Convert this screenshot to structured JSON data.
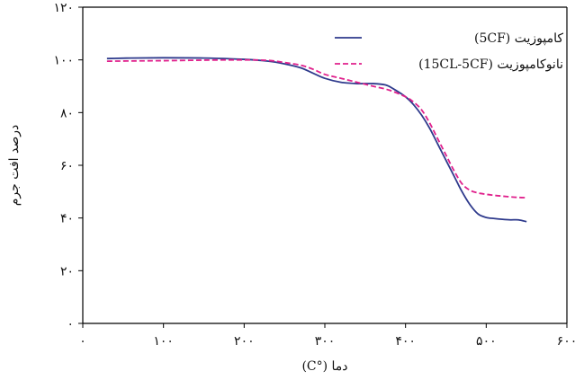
{
  "chart_data": {
    "type": "line",
    "xlabel": "دما (°C)",
    "ylabel": "درصد افت جرم",
    "xlim": [
      0,
      600
    ],
    "ylim": [
      0,
      120
    ],
    "x_ticks": [
      0,
      100,
      200,
      300,
      400,
      500,
      600
    ],
    "x_tick_labels": [
      "۰",
      "۱۰۰",
      "۲۰۰",
      "۳۰۰",
      "۴۰۰",
      "۵۰۰",
      "۶۰۰"
    ],
    "y_ticks": [
      0,
      20,
      40,
      60,
      80,
      100,
      120
    ],
    "y_tick_labels": [
      "۰",
      "۲۰",
      "۴۰",
      "۶۰",
      "۸۰",
      "۱۰۰",
      "۱۲۰"
    ],
    "grid": false,
    "legend_position": "top-right",
    "series": [
      {
        "name": "کامپوزیت (5CF)",
        "color": "#2e3a8c",
        "style": "solid",
        "x": [
          30,
          60,
          100,
          150,
          200,
          230,
          250,
          270,
          285,
          300,
          320,
          340,
          360,
          375,
          385,
          400,
          410,
          420,
          430,
          440,
          450,
          460,
          470,
          480,
          490,
          500,
          510,
          520,
          530,
          540,
          550
        ],
        "y": [
          100.5,
          100.7,
          100.8,
          100.7,
          100.2,
          99.5,
          98.5,
          97,
          95,
          93,
          91.5,
          91,
          91,
          90.5,
          89,
          86,
          83,
          79,
          74,
          68,
          62,
          56,
          50,
          45,
          41.5,
          40.2,
          39.8,
          39.5,
          39.3,
          39.3,
          38.6
        ]
      },
      {
        "name": "نانوکامپوزیت (15CL-5CF)",
        "color": "#e0208c",
        "style": "dashed",
        "x": [
          30,
          60,
          100,
          150,
          200,
          230,
          250,
          270,
          285,
          300,
          320,
          340,
          360,
          380,
          400,
          410,
          420,
          430,
          440,
          450,
          460,
          470,
          480,
          490,
          500,
          510,
          520,
          530,
          540,
          550
        ],
        "y": [
          99.5,
          99.6,
          99.7,
          99.9,
          100,
          99.8,
          99,
          98,
          96.5,
          94.5,
          93,
          91.5,
          90,
          88.5,
          86,
          84,
          81,
          76,
          70,
          64,
          58,
          53,
          50.5,
          49.5,
          49,
          48.6,
          48.3,
          48,
          47.8,
          47.7
        ]
      }
    ]
  }
}
